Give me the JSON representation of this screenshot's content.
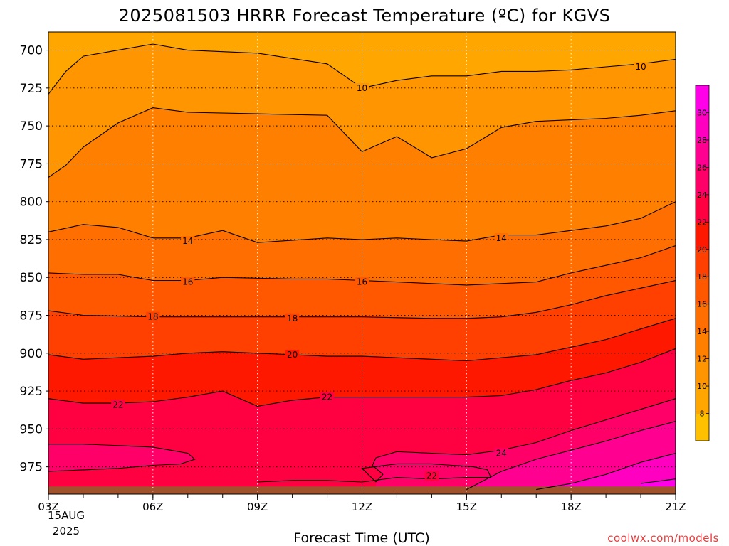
{
  "chart_data": {
    "type": "heatmap",
    "title": "2025081503 HRRR Forecast Temperature (ºC) for KGVS",
    "xlabel": "Forecast Time (UTC)",
    "ylabel": "",
    "x_axis": {
      "hours_utc": [
        3,
        4,
        5,
        6,
        7,
        8,
        9,
        10,
        11,
        12,
        13,
        14,
        15,
        16,
        17,
        18,
        19,
        20,
        21
      ],
      "range": [
        3,
        21
      ],
      "ticks": [
        {
          "hour": 3,
          "label": "03Z"
        },
        {
          "hour": 6,
          "label": "06Z"
        },
        {
          "hour": 9,
          "label": "09Z"
        },
        {
          "hour": 12,
          "label": "12Z"
        },
        {
          "hour": 15,
          "label": "15Z"
        },
        {
          "hour": 18,
          "label": "18Z"
        },
        {
          "hour": 21,
          "label": "21Z"
        }
      ],
      "start_date_day": "15AUG",
      "start_date_year": "2025"
    },
    "y_axis": {
      "range": [
        688,
        993
      ],
      "inverted": true,
      "ticks": [
        700,
        725,
        750,
        775,
        800,
        825,
        850,
        875,
        900,
        925,
        950,
        975
      ]
    },
    "grid": true,
    "contour_interval": 2,
    "contours": [
      {
        "level": 10,
        "points": [
          [
            3,
            729
          ],
          [
            3.5,
            714
          ],
          [
            4,
            704
          ],
          [
            5,
            700
          ],
          [
            6,
            696
          ],
          [
            7,
            700
          ],
          [
            9,
            702
          ],
          [
            11,
            709
          ],
          [
            12,
            725
          ],
          [
            13,
            720
          ],
          [
            14,
            717
          ],
          [
            15,
            717
          ],
          [
            16,
            714
          ],
          [
            17,
            714
          ],
          [
            18,
            713
          ],
          [
            19,
            711
          ],
          [
            20,
            709
          ],
          [
            21,
            706
          ]
        ]
      },
      {
        "level": 12,
        "points": [
          [
            3,
            784
          ],
          [
            3.5,
            776
          ],
          [
            4,
            764
          ],
          [
            5,
            748
          ],
          [
            6,
            738
          ],
          [
            7,
            741
          ],
          [
            9,
            742
          ],
          [
            11,
            743
          ],
          [
            12,
            767
          ],
          [
            13,
            757
          ],
          [
            14,
            771
          ],
          [
            15,
            765
          ],
          [
            16,
            751
          ],
          [
            17,
            747
          ],
          [
            18,
            746
          ],
          [
            19,
            745
          ],
          [
            20,
            743
          ],
          [
            21,
            740
          ]
        ]
      },
      {
        "level": 14,
        "points": [
          [
            3,
            820
          ],
          [
            4,
            815
          ],
          [
            5,
            817
          ],
          [
            6,
            824
          ],
          [
            7,
            824
          ],
          [
            8,
            819
          ],
          [
            9,
            827
          ],
          [
            11,
            824
          ],
          [
            12,
            825
          ],
          [
            13,
            824
          ],
          [
            14,
            825
          ],
          [
            15,
            826
          ],
          [
            16,
            822
          ],
          [
            17,
            822
          ],
          [
            18,
            819
          ],
          [
            19,
            816
          ],
          [
            20,
            811
          ],
          [
            21,
            800
          ]
        ]
      },
      {
        "level": 16,
        "points": [
          [
            3,
            847
          ],
          [
            4,
            848
          ],
          [
            5,
            848
          ],
          [
            6,
            852
          ],
          [
            7,
            852
          ],
          [
            8,
            850
          ],
          [
            10,
            851
          ],
          [
            11,
            851
          ],
          [
            12,
            852
          ],
          [
            13,
            853
          ],
          [
            14,
            854
          ],
          [
            15,
            855
          ],
          [
            16,
            854
          ],
          [
            17,
            853
          ],
          [
            18,
            847
          ],
          [
            19,
            842
          ],
          [
            20,
            837
          ],
          [
            21,
            829
          ]
        ]
      },
      {
        "level": 18,
        "points": [
          [
            3,
            872
          ],
          [
            4,
            875
          ],
          [
            6,
            876
          ],
          [
            8,
            876
          ],
          [
            10,
            876
          ],
          [
            12,
            876
          ],
          [
            14,
            877
          ],
          [
            15,
            877
          ],
          [
            16,
            876
          ],
          [
            17,
            873
          ],
          [
            18,
            868
          ],
          [
            19,
            862
          ],
          [
            20,
            857
          ],
          [
            21,
            852
          ]
        ]
      },
      {
        "level": 20,
        "points": [
          [
            3,
            901
          ],
          [
            4,
            904
          ],
          [
            5,
            903
          ],
          [
            6,
            902
          ],
          [
            7,
            900
          ],
          [
            8,
            899
          ],
          [
            9,
            900
          ],
          [
            10,
            901
          ],
          [
            11,
            902
          ],
          [
            12,
            902
          ],
          [
            13,
            903
          ],
          [
            14,
            904
          ],
          [
            15,
            905
          ],
          [
            16,
            903
          ],
          [
            17,
            901
          ],
          [
            18,
            896
          ],
          [
            19,
            891
          ],
          [
            20,
            884
          ],
          [
            21,
            877
          ]
        ]
      },
      {
        "level": 22,
        "points": [
          [
            3,
            930
          ],
          [
            4,
            933
          ],
          [
            5,
            933
          ],
          [
            6,
            932
          ],
          [
            7,
            929
          ],
          [
            8,
            925
          ],
          [
            9,
            935
          ],
          [
            10,
            931
          ],
          [
            11,
            929
          ],
          [
            12,
            929
          ],
          [
            13,
            929
          ],
          [
            14,
            929
          ],
          [
            15,
            929
          ],
          [
            16,
            928
          ],
          [
            17,
            924
          ],
          [
            18,
            918
          ],
          [
            19,
            913
          ],
          [
            20,
            906
          ],
          [
            21,
            897
          ]
        ]
      },
      {
        "level": 24,
        "points": [
          [
            3,
            978
          ],
          [
            5,
            976
          ],
          [
            6,
            974
          ],
          [
            6.8,
            973
          ],
          [
            7.2,
            970
          ],
          [
            7,
            966
          ],
          [
            6,
            962
          ],
          [
            5,
            961
          ],
          [
            4,
            960
          ],
          [
            3,
            960
          ]
        ]
      },
      {
        "level": 24,
        "points": [
          [
            12.4,
            985
          ],
          [
            12.6,
            980
          ],
          [
            12.3,
            974
          ],
          [
            12.4,
            969
          ],
          [
            13,
            965
          ],
          [
            14,
            966
          ],
          [
            15,
            967
          ],
          [
            16,
            964
          ],
          [
            17,
            959
          ],
          [
            18,
            951
          ],
          [
            19,
            944
          ],
          [
            20,
            937
          ],
          [
            21,
            930
          ]
        ]
      },
      {
        "level": 22,
        "points": [
          [
            9,
            985
          ],
          [
            10,
            984
          ],
          [
            11,
            984
          ],
          [
            12,
            985
          ],
          [
            13,
            982
          ],
          [
            14,
            983
          ],
          [
            15,
            982
          ],
          [
            15.7,
            982
          ],
          [
            15.6,
            977
          ],
          [
            15.2,
            975
          ],
          [
            14,
            973
          ],
          [
            13,
            973
          ],
          [
            12,
            976
          ],
          [
            12.4,
            985
          ]
        ]
      },
      {
        "level": 26,
        "points": [
          [
            15,
            990
          ],
          [
            16,
            978
          ],
          [
            17,
            970
          ],
          [
            18,
            964
          ],
          [
            19,
            958
          ],
          [
            20,
            951
          ],
          [
            21,
            945
          ]
        ]
      },
      {
        "level": 28,
        "points": [
          [
            17,
            990
          ],
          [
            18,
            986
          ],
          [
            19,
            980
          ],
          [
            20,
            972
          ],
          [
            21,
            966
          ]
        ]
      },
      {
        "level": 30,
        "points": [
          [
            20,
            986
          ],
          [
            21,
            983
          ]
        ]
      }
    ],
    "contour_labels": [
      {
        "text": "10",
        "x": 12.0,
        "y": 725
      },
      {
        "text": "10",
        "x": 20.0,
        "y": 711
      },
      {
        "text": "14",
        "x": 7.0,
        "y": 826
      },
      {
        "text": "14",
        "x": 16.0,
        "y": 824
      },
      {
        "text": "16",
        "x": 7.0,
        "y": 853
      },
      {
        "text": "16",
        "x": 12.0,
        "y": 853
      },
      {
        "text": "18",
        "x": 6.0,
        "y": 876
      },
      {
        "text": "18",
        "x": 10.0,
        "y": 877
      },
      {
        "text": "20",
        "x": 10.0,
        "y": 901
      },
      {
        "text": "22",
        "x": 5.0,
        "y": 934
      },
      {
        "text": "22",
        "x": 11.0,
        "y": 929
      },
      {
        "text": "22",
        "x": 14.0,
        "y": 981
      },
      {
        "text": "24",
        "x": 16.0,
        "y": 966
      }
    ],
    "colorbar": {
      "bounds": [
        6,
        8,
        10,
        12,
        14,
        16,
        18,
        20,
        22,
        24,
        26,
        28,
        30,
        32
      ],
      "labels": [
        "8",
        "10",
        "12",
        "14",
        "16",
        "18",
        "20",
        "22",
        "24",
        "26",
        "28",
        "30"
      ],
      "colors": [
        "#ffc000",
        "#ffa600",
        "#ff9500",
        "#ff8000",
        "#ff6e00",
        "#ff5800",
        "#ff4000",
        "#ff1800",
        "#ff0040",
        "#ff0068",
        "#ff0090",
        "#ff00c0",
        "#ff00e8"
      ]
    },
    "ground_color": "#a0522d"
  },
  "credit": "coolwx.com/models"
}
